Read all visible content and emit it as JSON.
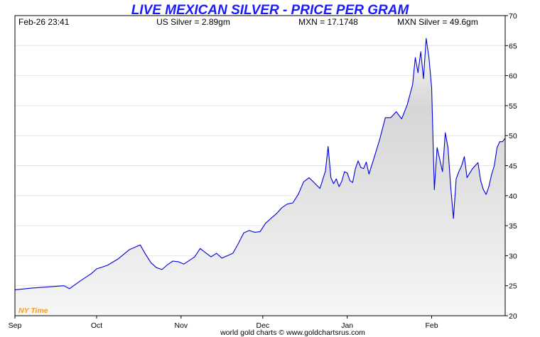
{
  "chart_data": {
    "type": "area",
    "title": "LIVE MEXICAN SILVER - PRICE PER GRAM",
    "header": {
      "timestamp": "Feb-26  23:41",
      "us_silver": "US Silver = 2.89gm",
      "mxn_rate": "MXN = 17.1748",
      "mxn_silver": "MXN Silver = 49.6gm"
    },
    "x_labels": [
      "Sep",
      "Oct",
      "Nov",
      "Dec",
      "Jan",
      "Feb"
    ],
    "x_domain": [
      0,
      180
    ],
    "x_label_positions": [
      0,
      30,
      61,
      91,
      122,
      153
    ],
    "ylim": [
      20,
      70
    ],
    "yticks": [
      20,
      25,
      30,
      35,
      40,
      45,
      50,
      55,
      60,
      65,
      70
    ],
    "series": [
      {
        "name": "MXN Silver per gram",
        "x": [
          0,
          6,
          12,
          18,
          20,
          24,
          28,
          30,
          34,
          38,
          42,
          46,
          48,
          50,
          52,
          54,
          56,
          58,
          60,
          62,
          64,
          66,
          68,
          70,
          72,
          74,
          76,
          78,
          80,
          82,
          84,
          86,
          88,
          90,
          92,
          94,
          96,
          98,
          100,
          102,
          104,
          106,
          108,
          110,
          112,
          114,
          115,
          116,
          117,
          118,
          119,
          120,
          121,
          122,
          123,
          124,
          125,
          126,
          127,
          128,
          129,
          130,
          132,
          134,
          136,
          138,
          140,
          142,
          144,
          146,
          147,
          148,
          149,
          150,
          151,
          152,
          153,
          154,
          155,
          156,
          157,
          158,
          159,
          160,
          161,
          162,
          163,
          164,
          165,
          166,
          168,
          170,
          171,
          172,
          173,
          174,
          175,
          176,
          177,
          178,
          179,
          180
        ],
        "values": [
          24.3,
          24.6,
          24.8,
          25.0,
          24.5,
          25.8,
          27.0,
          27.8,
          28.4,
          29.5,
          31.0,
          31.8,
          30.2,
          28.8,
          28.0,
          27.7,
          28.5,
          29.1,
          29.0,
          28.6,
          29.2,
          29.8,
          31.2,
          30.5,
          29.8,
          30.4,
          29.6,
          30.0,
          30.4,
          32.0,
          33.8,
          34.2,
          33.9,
          34.0,
          35.4,
          36.2,
          37.0,
          38.0,
          38.6,
          38.8,
          40.2,
          42.3,
          43.0,
          42.1,
          41.2,
          44.1,
          48.2,
          43.0,
          42.0,
          42.8,
          41.5,
          42.4,
          44.0,
          43.8,
          42.5,
          42.2,
          44.5,
          45.8,
          44.7,
          44.5,
          45.6,
          43.6,
          46.5,
          49.5,
          53.0,
          53.0,
          54.0,
          52.8,
          55.1,
          58.5,
          63.0,
          60.5,
          64.0,
          59.5,
          66.2,
          63.0,
          58.0,
          41.0,
          48.0,
          46.0,
          44.0,
          50.5,
          48.0,
          41.5,
          36.2,
          42.8,
          44.0,
          45.0,
          46.5,
          43.0,
          44.5,
          45.5,
          42.5,
          41.0,
          40.2,
          41.5,
          43.5,
          45.0,
          48.0,
          49.0,
          49.0,
          49.6
        ]
      }
    ],
    "time_zone_note": "NY Time",
    "source": "world gold charts © www.goldchartsrus.com",
    "colors": {
      "line": "#0000dd",
      "title": "#1a1aff",
      "note": "#f0a020"
    }
  }
}
